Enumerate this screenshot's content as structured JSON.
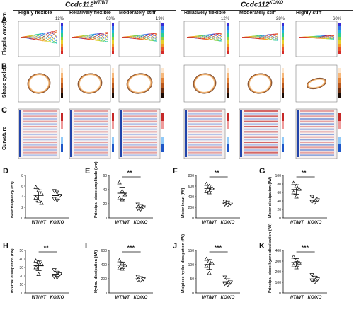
{
  "headers": {
    "left": {
      "main": "Ccdc112",
      "sup": "WT/WT"
    },
    "right": {
      "main": "Ccdc112",
      "sup": "KO/KO"
    }
  },
  "conditions": [
    {
      "title": "Highly flexible",
      "pct": "12%"
    },
    {
      "title": "Relatively flexible",
      "pct": "63%"
    },
    {
      "title": "Moderately stiff",
      "pct": "19%"
    },
    {
      "title": "Relatively flexible",
      "pct": "12%"
    },
    {
      "title": "Moderately stiff",
      "pct": "28%"
    },
    {
      "title": "Highly stiff",
      "pct": "60%"
    }
  ],
  "row_labels": {
    "A": "Flagella waveform",
    "B": "Shape cycle",
    "C": "Curvature"
  },
  "panel_letters": [
    "A",
    "B",
    "C",
    "D",
    "E",
    "F",
    "G",
    "H",
    "I",
    "J",
    "K"
  ],
  "colors": {
    "wt": "#ffffff",
    "ko": "#ffffff",
    "stroke": "#111111"
  },
  "chart_data": [
    {
      "id": "D",
      "type": "scatter",
      "ylabel": "Beat frequency (Hz)",
      "categories": [
        "WT/WT",
        "KO/KO"
      ],
      "ylim": [
        0,
        8
      ],
      "yticks": [
        0,
        2,
        4,
        6,
        8
      ],
      "sig": "",
      "series": [
        {
          "name": "WT/WT",
          "values": [
            5.8,
            5.2,
            4.6,
            3.8,
            3.2,
            2.8
          ]
        },
        {
          "name": "KO/KO",
          "values": [
            5.1,
            4.8,
            4.2,
            3.6,
            3.3
          ]
        }
      ]
    },
    {
      "id": "E",
      "type": "scatter",
      "ylabel": "Principal piece amplitude (µm)",
      "categories": [
        "WT/WT",
        "KO/KO"
      ],
      "ylim": [
        0,
        60
      ],
      "yticks": [
        0,
        20,
        40,
        60
      ],
      "sig": "**",
      "series": [
        {
          "name": "WT/WT",
          "values": [
            50,
            38,
            33,
            28,
            26
          ]
        },
        {
          "name": "KO/KO",
          "values": [
            19,
            17,
            15,
            13,
            12
          ]
        }
      ]
    },
    {
      "id": "F",
      "type": "scatter",
      "ylabel": "Motor input (fW)",
      "categories": [
        "WT/WT",
        "KO/KO"
      ],
      "ylim": [
        0,
        800
      ],
      "yticks": [
        0,
        200,
        400,
        600,
        800
      ],
      "sig": "**",
      "series": [
        {
          "name": "WT/WT",
          "values": [
            640,
            600,
            560,
            500,
            480
          ]
        },
        {
          "name": "KO/KO",
          "values": [
            310,
            290,
            270,
            255,
            240
          ]
        }
      ]
    },
    {
      "id": "G",
      "type": "scatter",
      "ylabel": "Motor dissipation (fW)",
      "categories": [
        "WT/WT",
        "KO/KO"
      ],
      "ylim": [
        0,
        100
      ],
      "yticks": [
        0,
        20,
        40,
        60,
        80,
        100
      ],
      "sig": "**",
      "series": [
        {
          "name": "WT/WT",
          "values": [
            82,
            75,
            68,
            60,
            50
          ]
        },
        {
          "name": "KO/KO",
          "values": [
            50,
            46,
            42,
            38,
            36
          ]
        }
      ]
    },
    {
      "id": "H",
      "type": "scatter",
      "ylabel": "Internal dissipation (fW)",
      "categories": [
        "WT/WT",
        "KO/KO"
      ],
      "ylim": [
        0,
        50
      ],
      "yticks": [
        0,
        10,
        20,
        30,
        40,
        50
      ],
      "sig": "**",
      "series": [
        {
          "name": "WT/WT",
          "values": [
            38,
            36,
            34,
            30,
            22
          ]
        },
        {
          "name": "KO/KO",
          "values": [
            27,
            24,
            22,
            19,
            18
          ]
        }
      ]
    },
    {
      "id": "I",
      "type": "scatter",
      "ylabel": "Hydro. dissipation (fW)",
      "categories": [
        "WT/WT",
        "KO/KO"
      ],
      "ylim": [
        0,
        600
      ],
      "yticks": [
        0,
        200,
        400,
        600
      ],
      "sig": "***",
      "series": [
        {
          "name": "WT/WT",
          "values": [
            460,
            420,
            390,
            350,
            340
          ]
        },
        {
          "name": "KO/KO",
          "values": [
            230,
            210,
            195,
            180,
            175
          ]
        }
      ]
    },
    {
      "id": "J",
      "type": "scatter",
      "ylabel": "Midpiece hydro dissipation (fW)",
      "categories": [
        "WT/WT",
        "KO/KO"
      ],
      "ylim": [
        0,
        150
      ],
      "yticks": [
        0,
        50,
        100,
        150
      ],
      "sig": "***",
      "series": [
        {
          "name": "WT/WT",
          "values": [
            120,
            112,
            105,
            95,
            70
          ]
        },
        {
          "name": "KO/KO",
          "values": [
            55,
            45,
            38,
            32,
            28
          ]
        }
      ]
    },
    {
      "id": "K",
      "type": "scatter",
      "ylabel": "Principal piece hydro dissipation (fW)",
      "categories": [
        "WT/WT",
        "KO/KO"
      ],
      "ylim": [
        0,
        400
      ],
      "yticks": [
        0,
        100,
        200,
        300,
        400
      ],
      "sig": "***",
      "series": [
        {
          "name": "WT/WT",
          "values": [
            340,
            310,
            285,
            260,
            240
          ]
        },
        {
          "name": "KO/KO",
          "values": [
            170,
            145,
            130,
            115,
            100
          ]
        }
      ]
    }
  ]
}
